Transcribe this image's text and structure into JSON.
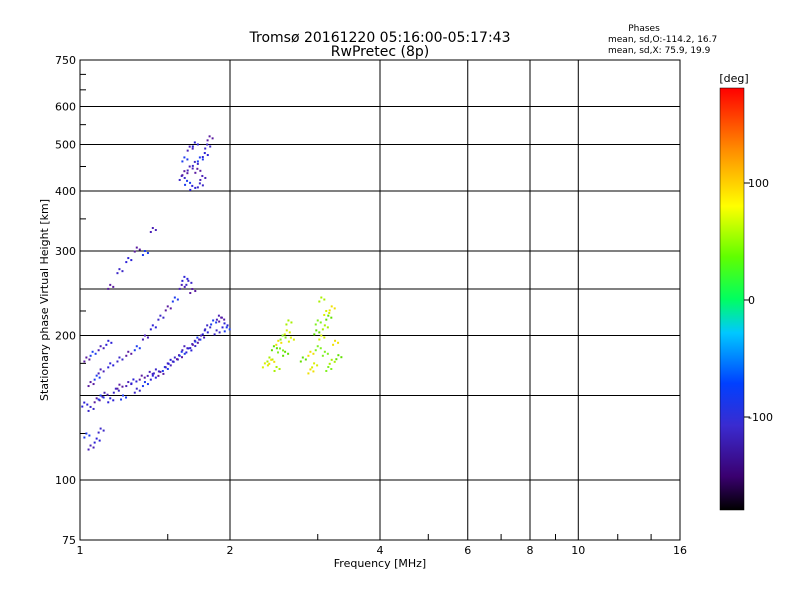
{
  "title": {
    "line1": "Tromsø 20161220 05:16:00-05:17:43",
    "line2": "RwPretec (8p)"
  },
  "phases_box": {
    "heading": "Phases",
    "line1": "mean, sd,O:-114.2, 16.7",
    "line2": "mean, sd,X:  75.9, 19.9"
  },
  "colorbar": {
    "label": "[deg]",
    "ticks": [
      "100",
      "0",
      "-100"
    ]
  },
  "chart_data": {
    "type": "scatter",
    "title": "Tromsø 20161220 05:16:00-05:17:43",
    "subtitle": "RwPretec (8p)",
    "xlabel": "Frequency [MHz]",
    "ylabel": "Stationary phase Virtual Height [km]",
    "xscale": "log",
    "yscale": "log",
    "xlim": [
      1,
      16
    ],
    "ylim": [
      75,
      750
    ],
    "xticks": [
      "1",
      "2",
      "4",
      "6",
      "8",
      "10",
      "16"
    ],
    "yticks": [
      "75",
      "100",
      "200",
      "300",
      "400",
      "500",
      "600",
      "750"
    ],
    "grid": true,
    "colorbar_range_deg": [
      -180,
      180
    ],
    "series": [
      {
        "name": "O",
        "description_points": [
          [
            1.02,
            145
          ],
          [
            1.05,
            142
          ],
          [
            1.08,
            148
          ],
          [
            1.1,
            150
          ],
          [
            1.12,
            152
          ],
          [
            1.15,
            148
          ],
          [
            1.18,
            155
          ],
          [
            1.2,
            158
          ],
          [
            1.22,
            150
          ],
          [
            1.25,
            160
          ],
          [
            1.28,
            162
          ],
          [
            1.3,
            155
          ],
          [
            1.33,
            165
          ],
          [
            1.35,
            160
          ],
          [
            1.38,
            168
          ],
          [
            1.4,
            165
          ],
          [
            1.42,
            170
          ],
          [
            1.45,
            168
          ],
          [
            1.48,
            172
          ],
          [
            1.5,
            175
          ],
          [
            1.52,
            178
          ],
          [
            1.55,
            180
          ],
          [
            1.58,
            182
          ],
          [
            1.6,
            185
          ],
          [
            1.62,
            190
          ],
          [
            1.65,
            188
          ],
          [
            1.68,
            192
          ],
          [
            1.7,
            195
          ],
          [
            1.72,
            198
          ],
          [
            1.75,
            200
          ],
          [
            1.78,
            205
          ],
          [
            1.8,
            210
          ],
          [
            1.05,
            160
          ],
          [
            1.08,
            165
          ],
          [
            1.1,
            170
          ],
          [
            1.15,
            175
          ],
          [
            1.2,
            180
          ],
          [
            1.25,
            185
          ],
          [
            1.3,
            190
          ],
          [
            1.35,
            200
          ],
          [
            1.4,
            210
          ],
          [
            1.45,
            220
          ],
          [
            1.5,
            230
          ],
          [
            1.55,
            240
          ],
          [
            1.6,
            255
          ],
          [
            1.62,
            265
          ],
          [
            1.65,
            260
          ],
          [
            1.68,
            250
          ],
          [
            1.03,
            125
          ],
          [
            1.05,
            118
          ],
          [
            1.08,
            122
          ],
          [
            1.1,
            128
          ],
          [
            1.03,
            180
          ],
          [
            1.06,
            185
          ],
          [
            1.1,
            190
          ],
          [
            1.14,
            195
          ],
          [
            1.6,
            430
          ],
          [
            1.62,
            440
          ],
          [
            1.64,
            420
          ],
          [
            1.66,
            450
          ],
          [
            1.68,
            410
          ],
          [
            1.7,
            460
          ],
          [
            1.72,
            445
          ],
          [
            1.74,
            470
          ],
          [
            1.76,
            430
          ],
          [
            1.78,
            480
          ],
          [
            1.8,
            500
          ],
          [
            1.82,
            520
          ],
          [
            1.62,
            470
          ],
          [
            1.66,
            495
          ],
          [
            1.7,
            505
          ],
          [
            1.74,
            415
          ],
          [
            1.3,
            305
          ],
          [
            1.35,
            300
          ],
          [
            1.4,
            335
          ],
          [
            1.25,
            290
          ],
          [
            1.2,
            275
          ],
          [
            1.15,
            255
          ],
          [
            1.85,
            215
          ],
          [
            1.9,
            220
          ],
          [
            1.95,
            212
          ],
          [
            1.88,
            205
          ],
          [
            1.92,
            218
          ],
          [
            1.97,
            208
          ]
        ]
      },
      {
        "name": "X",
        "description_points": [
          [
            2.35,
            175
          ],
          [
            2.4,
            180
          ],
          [
            2.45,
            190
          ],
          [
            2.5,
            195
          ],
          [
            2.55,
            200
          ],
          [
            2.6,
            205
          ],
          [
            2.62,
            215
          ],
          [
            2.58,
            185
          ],
          [
            2.42,
            178
          ],
          [
            2.52,
            188
          ],
          [
            2.65,
            198
          ],
          [
            2.48,
            172
          ],
          [
            2.8,
            180
          ],
          [
            2.9,
            185
          ],
          [
            3.0,
            190
          ],
          [
            3.05,
            200
          ],
          [
            3.1,
            210
          ],
          [
            3.15,
            220
          ],
          [
            3.2,
            230
          ],
          [
            3.1,
            185
          ],
          [
            2.95,
            175
          ],
          [
            3.2,
            178
          ],
          [
            3.3,
            182
          ],
          [
            3.25,
            195
          ],
          [
            3.0,
            215
          ],
          [
            3.12,
            225
          ],
          [
            3.05,
            240
          ],
          [
            2.98,
            205
          ],
          [
            2.9,
            170
          ],
          [
            3.15,
            172
          ]
        ]
      }
    ],
    "notes": "Point positions are approximate readings of the scatter clusters; colour encodes phase in degrees."
  }
}
